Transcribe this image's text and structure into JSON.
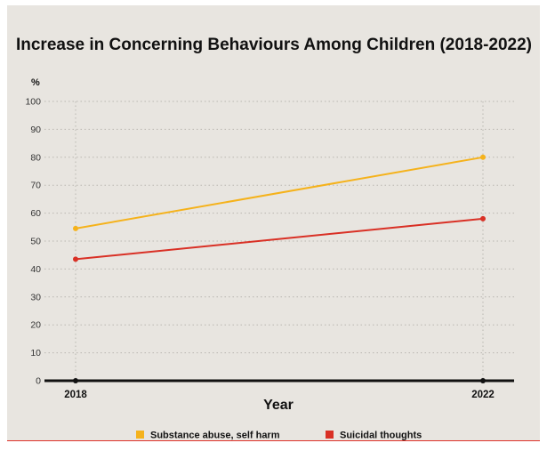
{
  "chart_data": {
    "type": "line",
    "title": "Increase in Concerning Behaviours Among Children (2018-2022)",
    "ylabel": "%",
    "xlabel": "Year",
    "categories": [
      "2018",
      "2022"
    ],
    "ylim": [
      0,
      100
    ],
    "yticks": [
      0,
      10,
      20,
      30,
      40,
      50,
      60,
      70,
      80,
      90,
      100
    ],
    "grid": true,
    "legend_position": "bottom",
    "series": [
      {
        "name": "Substance abuse, self harm",
        "values": [
          54.5,
          80
        ],
        "color": "#f5b21b"
      },
      {
        "name": "Suicidal thoughts",
        "values": [
          43.5,
          58
        ],
        "color": "#d93025"
      }
    ]
  }
}
